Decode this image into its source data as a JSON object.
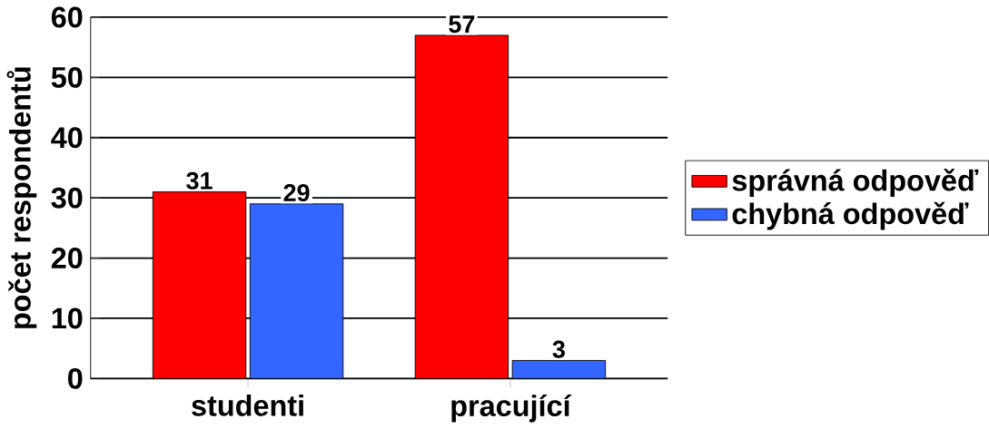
{
  "chart_data": {
    "type": "bar",
    "ylabel": "počet respondentů",
    "categories": [
      "studenti",
      "pracující"
    ],
    "series": [
      {
        "name": "správná odpověď",
        "color": "#ff0000",
        "values": [
          31,
          57
        ]
      },
      {
        "name": "chybná odpověď",
        "color": "#3366ff",
        "values": [
          29,
          3
        ]
      }
    ],
    "ylim": [
      0,
      60
    ],
    "yticks": [
      0,
      10,
      20,
      30,
      40,
      50,
      60
    ],
    "grid": "y",
    "legend": "right",
    "data_labels": true
  }
}
